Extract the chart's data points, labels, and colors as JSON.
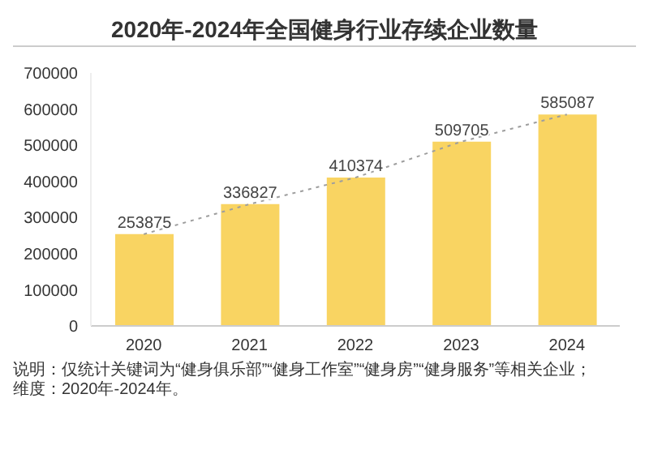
{
  "chart_data": {
    "type": "bar",
    "title": "2020年-2024年全国健身行业存续企业数量",
    "categories": [
      "2020",
      "2021",
      "2022",
      "2023",
      "2024"
    ],
    "series": [
      {
        "color": "#f9d462",
        "values": [
          253875,
          336827,
          410374,
          509705,
          585087
        ],
        "value_labels": [
          "253875",
          "336827",
          "410374",
          "509705",
          "585087"
        ]
      },
      {
        "type": "line",
        "color": "#9e9e9e",
        "line_style": "dotted",
        "values": [
          253875,
          336827,
          410374,
          509705,
          585087
        ]
      }
    ],
    "ylim": [
      0,
      700000
    ],
    "yticks": [
      0,
      100000,
      200000,
      300000,
      400000,
      500000,
      600000,
      700000
    ],
    "annotations": [
      "说明：仅统计关键词为“健身俱乐部”“健身工作室”“健身房”“健身服务”等相关企业；",
      "维度：2020年-2024年。"
    ]
  }
}
